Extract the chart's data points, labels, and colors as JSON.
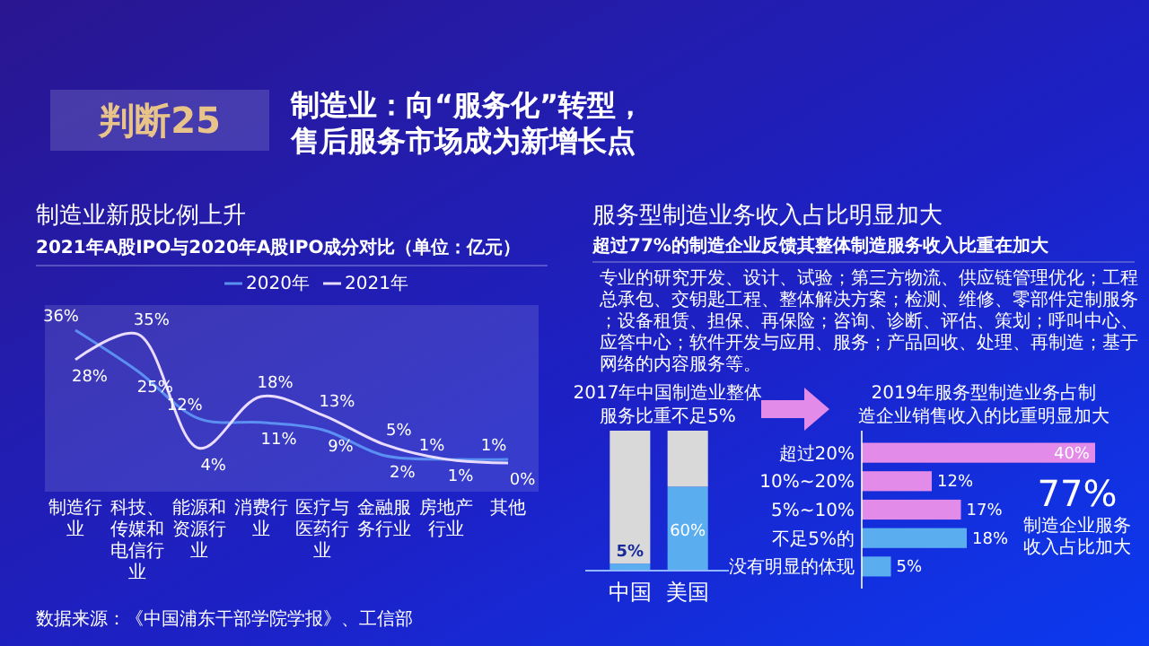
{
  "chart_data": [
    {
      "type": "line",
      "title": "制造业新股比例上升",
      "subtitle": "2021年A股IPO与2020年A股IPO成分对比（单位：亿元）",
      "categories": [
        "制造行业",
        "科技、传媒和电信行业",
        "能源和资源行业",
        "消费行业",
        "医疗与医药行业",
        "金融服务行业",
        "房地产行业",
        "其他"
      ],
      "series": [
        {
          "name": "2020年",
          "color": "#5b8ff2",
          "values": [
            36,
            25,
            12,
            11,
            9,
            2,
            1,
            1
          ],
          "value_labels": [
            "36%",
            "25%",
            "12%",
            "11%",
            "9%",
            "2%",
            "1%",
            "1%"
          ]
        },
        {
          "name": "2021年",
          "color": "#eadcff",
          "values": [
            28,
            35,
            4,
            18,
            13,
            5,
            1,
            0
          ],
          "value_labels": [
            "28%",
            "35%",
            "4%",
            "18%",
            "13%",
            "5%",
            "1%",
            "0%"
          ]
        }
      ],
      "legend": "top",
      "annotations": [
        "判断25",
        "制造业：向“服务化”转型，",
        "售后服务市场成为新增长点",
        "数据来源：《中国浦东干部学院学报》、工信部"
      ]
    },
    {
      "type": "bar",
      "stacked": true,
      "title": "服务型制造业务收入占比明显加大",
      "subtitle": "超过77%的制造企业反馈其整体制造服务收入比重在加大",
      "categories": [
        "中国",
        "美国"
      ],
      "series": [
        {
          "color": "#5aaef0",
          "values": [
            5,
            60
          ],
          "value_labels": [
            "5%",
            "60%"
          ]
        },
        {
          "color": "#d9d9d9",
          "values": [
            95,
            40
          ]
        }
      ],
      "annotations": [
        "专业的研究开发、设计、试验；第三方物流、供应链管理优化；工程总承包、交钥匙工程、整体解决方案；检测、维修、零部件定制服务；设备租赁、担保、再保险；咨询、诊断、评估、策划；呼叫中心、应答中心；软件开发与应用、服务；产品回收、处理、再制造；基于网络的内容服务等。",
        "2017年中国制造业整体",
        "服务比重不足5%"
      ]
    },
    {
      "type": "bar",
      "orientation": "horizontal",
      "title": "2019年服务型制造业务占制造企业销售收入的比重明显加大",
      "categories": [
        "超过20%",
        "10%~20%",
        "5%~10%",
        "不足5%的",
        "没有明显的体现"
      ],
      "values": [
        40,
        12,
        17,
        18,
        5
      ],
      "colors": [
        "#e38be8",
        "#e38be8",
        "#e38be8",
        "#5aaef0",
        "#5aaef0"
      ],
      "value_labels": [
        "40%",
        "12%",
        "17%",
        "18%",
        "5%"
      ],
      "annotations": [
        "77%",
        "制造企业服务收入占比加大"
      ]
    }
  ]
}
